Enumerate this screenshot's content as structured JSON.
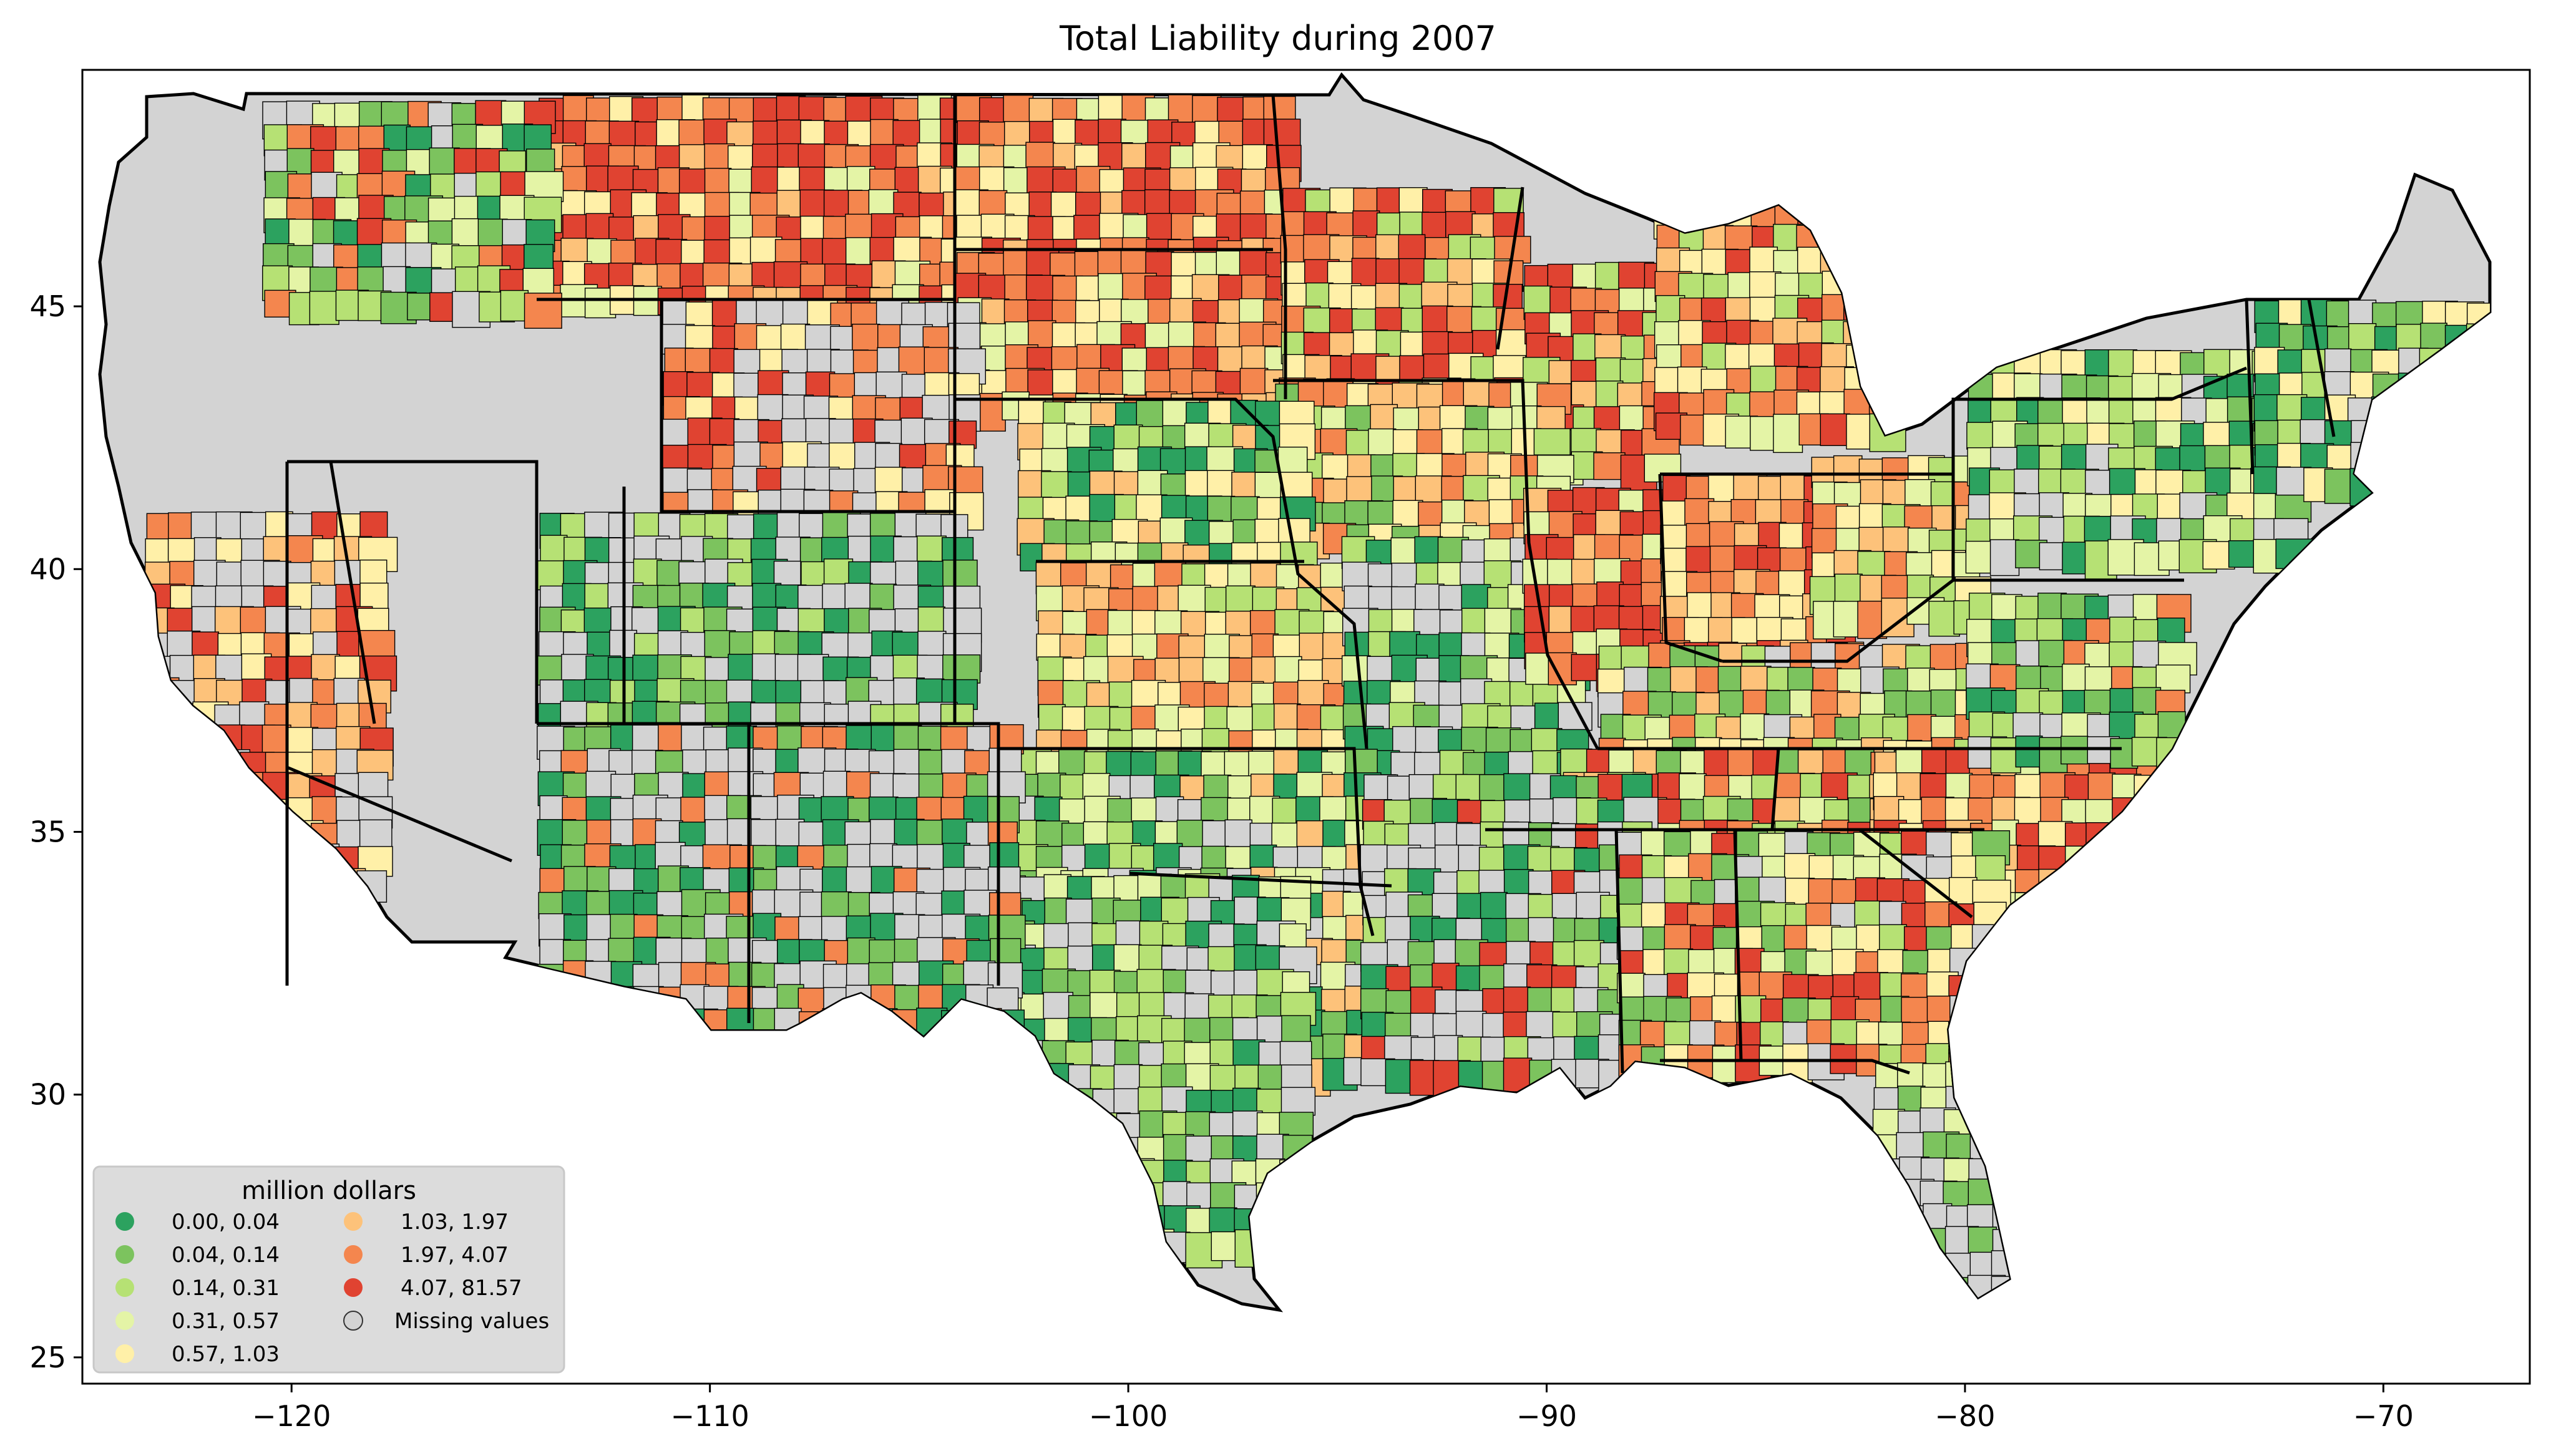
{
  "title": "Total Liability during 2007",
  "map_data": {
    "projection": "plate-carree",
    "x_range": [
      -125,
      -66.5
    ],
    "y_range": [
      24.5,
      49.5
    ],
    "x_ticks": [
      -120,
      -110,
      -100,
      -90,
      -80,
      -70
    ],
    "y_ticks": [
      25,
      30,
      35,
      40,
      45
    ],
    "x_tick_labels": [
      "−120",
      "−110",
      "−100",
      "−90",
      "−80",
      "−70"
    ],
    "y_tick_labels": [
      "25",
      "30",
      "35",
      "40",
      "45"
    ],
    "missing_color": "#d3d3d3",
    "border_color": "#000000"
  },
  "legend": {
    "title": "million dollars",
    "placement": "lower-left",
    "items": [
      {
        "label": "0.00,  0.04",
        "color": "#2ca25f"
      },
      {
        "label": "0.04,  0.14",
        "color": "#7cc35e"
      },
      {
        "label": "0.14,  0.31",
        "color": "#b6e174"
      },
      {
        "label": "0.31,  0.57",
        "color": "#e4f4a6"
      },
      {
        "label": "0.57,  1.03",
        "color": "#fff0a8"
      },
      {
        "label": "1.03,  1.97",
        "color": "#fdc27a"
      },
      {
        "label": "1.97,  4.07",
        "color": "#f4864e"
      },
      {
        "label": "4.07, 81.57",
        "color": "#e04331"
      },
      {
        "label": "Missing values",
        "color": "#d3d3d3"
      }
    ]
  }
}
